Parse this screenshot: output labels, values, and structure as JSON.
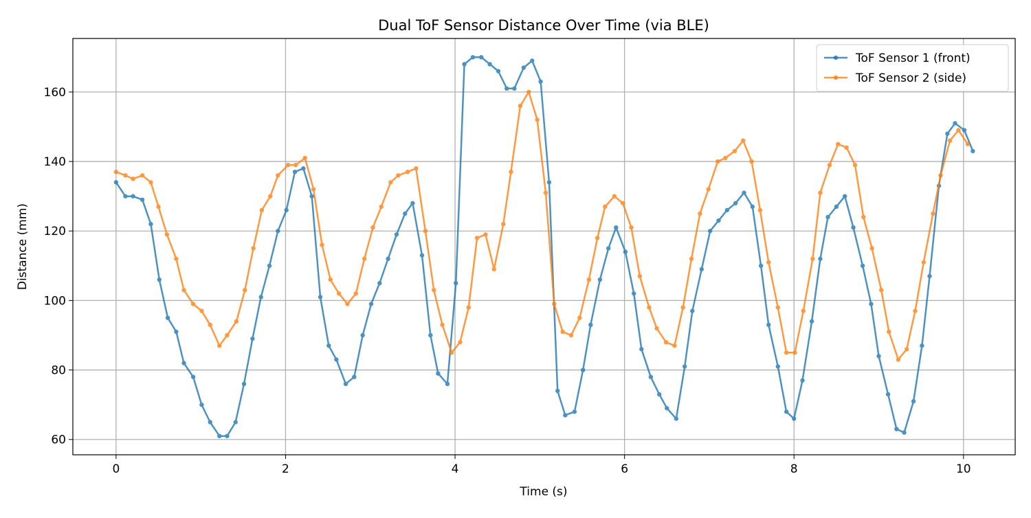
{
  "chart_data": {
    "type": "line",
    "title": "Dual ToF Sensor Distance Over Time (via BLE)",
    "xlabel": "Time (s)",
    "ylabel": "Distance (mm)",
    "xlim": [
      -0.51,
      10.61
    ],
    "ylim": [
      55.6,
      175.4
    ],
    "xticks": [
      0,
      2,
      4,
      6,
      8,
      10
    ],
    "yticks": [
      60,
      80,
      100,
      120,
      140,
      160
    ],
    "grid": true,
    "legend_position": "top-right",
    "series": [
      {
        "name": "ToF Sensor 1 (front)",
        "color": "#1f77b4",
        "x": [
          0.0,
          0.11,
          0.2,
          0.31,
          0.41,
          0.51,
          0.61,
          0.71,
          0.8,
          0.91,
          1.01,
          1.11,
          1.22,
          1.31,
          1.41,
          1.51,
          1.61,
          1.71,
          1.81,
          1.91,
          2.01,
          2.11,
          2.21,
          2.31,
          2.41,
          2.51,
          2.6,
          2.71,
          2.81,
          2.91,
          3.01,
          3.11,
          3.21,
          3.31,
          3.41,
          3.5,
          3.61,
          3.71,
          3.8,
          3.91,
          4.01,
          4.11,
          4.21,
          4.31,
          4.41,
          4.51,
          4.61,
          4.7,
          4.81,
          4.91,
          5.01,
          5.11,
          5.21,
          5.3,
          5.41,
          5.51,
          5.6,
          5.71,
          5.81,
          5.9,
          6.01,
          6.11,
          6.2,
          6.31,
          6.41,
          6.5,
          6.61,
          6.71,
          6.8,
          6.91,
          7.01,
          7.11,
          7.21,
          7.31,
          7.41,
          7.51,
          7.61,
          7.7,
          7.81,
          7.91,
          8.0,
          8.1,
          8.21,
          8.31,
          8.4,
          8.5,
          8.6,
          8.7,
          8.81,
          8.91,
          9.0,
          9.11,
          9.21,
          9.3,
          9.41,
          9.51,
          9.6,
          9.71,
          9.81,
          9.9,
          10.01,
          10.11
        ],
        "y": [
          134,
          130,
          130,
          129,
          122,
          106,
          95,
          91,
          82,
          78,
          70,
          65,
          61,
          61,
          65,
          76,
          89,
          101,
          110,
          120,
          126,
          137,
          138,
          130,
          101,
          87,
          83,
          76,
          78,
          90,
          99,
          105,
          112,
          119,
          125,
          128,
          113,
          90,
          79,
          76,
          105,
          168,
          170,
          170,
          168,
          166,
          161,
          161,
          167,
          169,
          163,
          134,
          74,
          67,
          68,
          80,
          93,
          106,
          115,
          121,
          114,
          102,
          86,
          78,
          73,
          69,
          66,
          81,
          97,
          109,
          120,
          123,
          126,
          128,
          131,
          127,
          110,
          93,
          81,
          68,
          66,
          77,
          94,
          112,
          124,
          127,
          130,
          121,
          110,
          99,
          84,
          73,
          63,
          62,
          71,
          87,
          107,
          133,
          148,
          151,
          149,
          143
        ]
      },
      {
        "name": "ToF Sensor 2 (side)",
        "color": "#ff7f0e",
        "x": [
          0.0,
          0.11,
          0.2,
          0.31,
          0.41,
          0.5,
          0.6,
          0.71,
          0.8,
          0.91,
          1.01,
          1.11,
          1.22,
          1.31,
          1.42,
          1.52,
          1.62,
          1.72,
          1.82,
          1.91,
          2.03,
          2.12,
          2.23,
          2.33,
          2.43,
          2.53,
          2.63,
          2.73,
          2.83,
          2.93,
          3.03,
          3.13,
          3.24,
          3.33,
          3.44,
          3.54,
          3.65,
          3.75,
          3.85,
          3.96,
          4.06,
          4.16,
          4.26,
          4.36,
          4.46,
          4.57,
          4.66,
          4.77,
          4.87,
          4.97,
          5.07,
          5.17,
          5.27,
          5.37,
          5.47,
          5.58,
          5.68,
          5.77,
          5.88,
          5.98,
          6.08,
          6.18,
          6.29,
          6.38,
          6.49,
          6.59,
          6.69,
          6.79,
          6.89,
          6.99,
          7.1,
          7.19,
          7.3,
          7.4,
          7.5,
          7.6,
          7.7,
          7.81,
          7.91,
          8.01,
          8.11,
          8.22,
          8.31,
          8.42,
          8.52,
          8.62,
          8.72,
          8.82,
          8.92,
          9.03,
          9.12,
          9.23,
          9.33,
          9.43,
          9.53,
          9.64,
          9.73,
          9.84,
          9.94,
          10.05
        ],
        "y": [
          137,
          136,
          135,
          136,
          134,
          127,
          119,
          112,
          103,
          99,
          97,
          93,
          87,
          90,
          94,
          103,
          115,
          126,
          130,
          136,
          139,
          139,
          141,
          132,
          116,
          106,
          102,
          99,
          102,
          112,
          121,
          127,
          134,
          136,
          137,
          138,
          120,
          103,
          93,
          85,
          88,
          98,
          118,
          119,
          109,
          122,
          137,
          156,
          160,
          152,
          131,
          99,
          91,
          90,
          95,
          106,
          118,
          127,
          130,
          128,
          121,
          107,
          98,
          92,
          88,
          87,
          98,
          112,
          125,
          132,
          140,
          141,
          143,
          146,
          140,
          126,
          111,
          98,
          85,
          85,
          97,
          112,
          131,
          139,
          145,
          144,
          139,
          124,
          115,
          103,
          91,
          83,
          86,
          97,
          111,
          125,
          136,
          146,
          149,
          145
        ]
      }
    ]
  }
}
